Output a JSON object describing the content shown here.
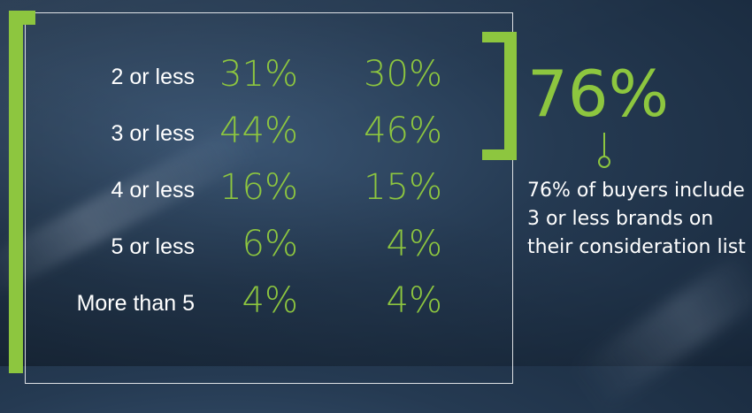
{
  "chart_data": {
    "type": "table",
    "categories": [
      "2 or less",
      "3 or less",
      "4 or less",
      "5 or less",
      "More than 5"
    ],
    "series": [
      {
        "values": [
          "31%",
          "44%",
          "16%",
          "6%",
          "4%"
        ]
      },
      {
        "values": [
          "30%",
          "46%",
          "15%",
          "4%",
          "4%"
        ]
      }
    ]
  },
  "callout": {
    "value": "76%",
    "text": "76% of buyers include 3 or less brands on their consideration list"
  },
  "colors": {
    "accent": "#8dc63f",
    "text": "#ffffff",
    "background": "#253a52"
  }
}
